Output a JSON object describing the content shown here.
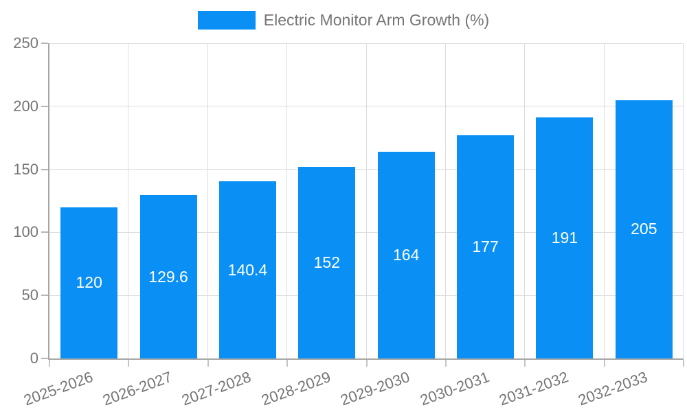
{
  "legend": {
    "label": "Electric Monitor Arm Growth (%)"
  },
  "chart_data": {
    "type": "bar",
    "title": "Electric Monitor Arm Growth (%)",
    "categories": [
      "2025-2026",
      "2026-2027",
      "2027-2028",
      "2028-2029",
      "2029-2030",
      "2030-2031",
      "2031-2032",
      "2032-2033"
    ],
    "values": [
      120,
      129.6,
      140.4,
      152,
      164,
      177,
      191,
      205
    ],
    "series_name": "Electric Monitor Arm Growth (%)",
    "xlabel": "",
    "ylabel": "",
    "ylim": [
      0,
      250
    ],
    "yticks": [
      0,
      50,
      100,
      150,
      200,
      250
    ],
    "grid": true,
    "legend_position": "top-center",
    "bar_color": "#0a90f5",
    "value_label_color": "#ffffff",
    "axis_text_color": "#757575",
    "gridline_color": "#dcdcdc",
    "axis_line_color": "#a6a6a6"
  }
}
